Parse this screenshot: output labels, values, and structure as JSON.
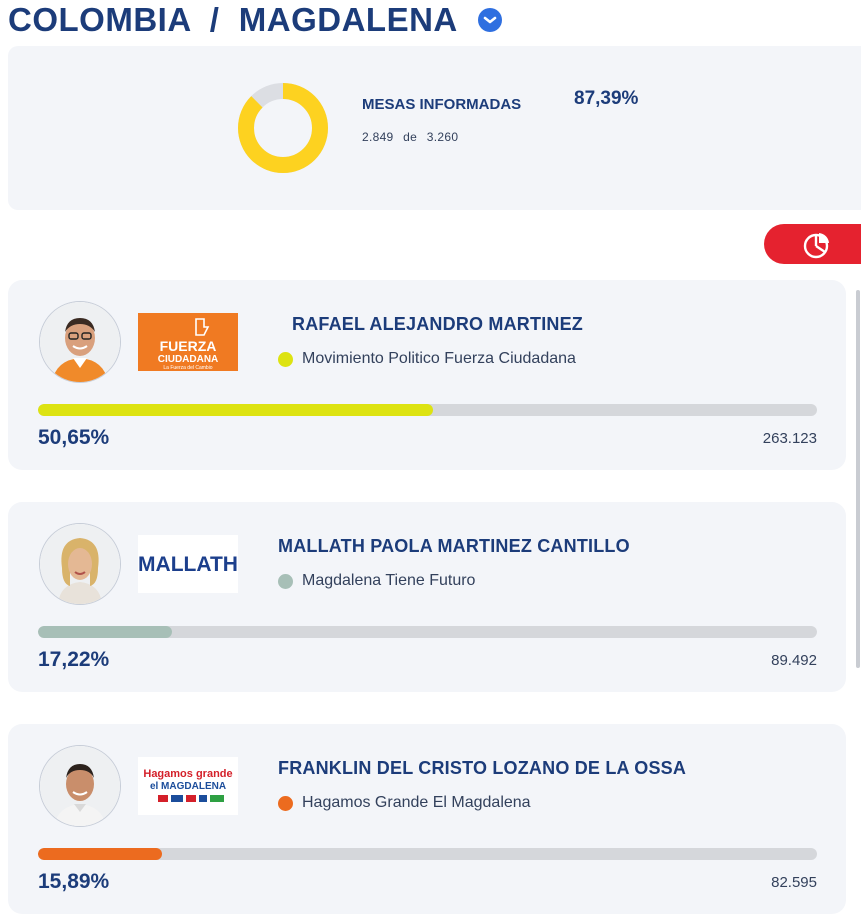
{
  "header": {
    "title": "COLOMBIA  /  MAGDALENA",
    "chevron_icon": "chevron-down-icon"
  },
  "summary": {
    "label": "MESAS INFORMADAS",
    "percent": "87,39%",
    "count_reported": "2.849",
    "count_connector": "de",
    "count_total": "3.260",
    "progress_fraction": 0.8739,
    "colors": {
      "filled": "#fdd220",
      "empty": "#dcdee3"
    }
  },
  "chart_toggle": {
    "icon": "pie-chart-icon",
    "color": "#e5222f"
  },
  "candidates": [
    {
      "name": "RAFAEL ALEJANDRO MARTINEZ",
      "party": "Movimiento Politico Fuerza Ciudadana",
      "percent": "50,65%",
      "votes": "263.123",
      "share": 0.5065,
      "color": "#dde312",
      "logo": {
        "line1": "FUERZA",
        "line2": "CIUDADANA",
        "line3": "La Fuerza del Cambio",
        "bg": "#f07a22"
      }
    },
    {
      "name": "MALLATH PAOLA MARTINEZ CANTILLO",
      "party": "Magdalena Tiene Futuro",
      "percent": "17,22%",
      "votes": "89.492",
      "share": 0.1722,
      "color": "#a7bfb7",
      "logo": {
        "text": "MALLATH"
      }
    },
    {
      "name": "FRANKLIN DEL CRISTO LOZANO DE LA OSSA",
      "party": "Hagamos Grande El Magdalena",
      "percent": "15,89%",
      "votes": "82.595",
      "share": 0.1589,
      "color": "#ec6b1f",
      "logo": {
        "line1": "Hagamos grande",
        "line2": "el MAGDALENA"
      }
    }
  ]
}
